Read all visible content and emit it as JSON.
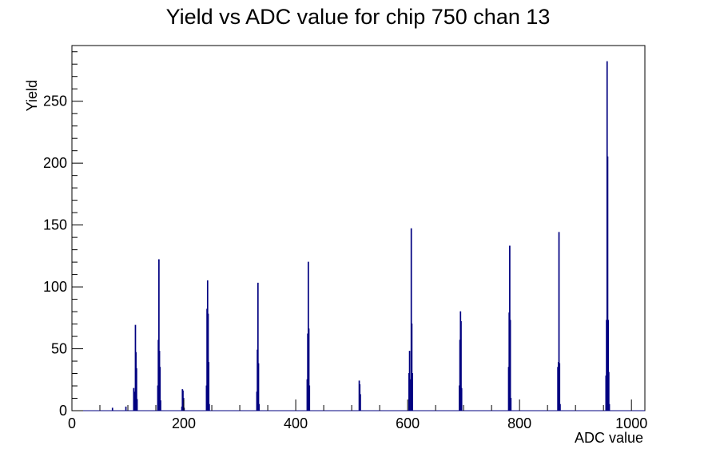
{
  "chart_data": {
    "type": "histogram",
    "title": "Yield vs ADC value for chip 750 chan 13",
    "xlabel": "ADC value",
    "ylabel": "Yield",
    "xlim": [
      0,
      1024
    ],
    "ylim": [
      0,
      295
    ],
    "xticks": [
      0,
      200,
      400,
      600,
      800,
      1000
    ],
    "yticks": [
      0,
      50,
      100,
      150,
      200,
      250
    ],
    "grid": false,
    "legend": "none",
    "line_color": "#000080",
    "bins": [
      {
        "x": 72,
        "y": 2
      },
      {
        "x": 96,
        "y": 3
      },
      {
        "x": 110,
        "y": 18
      },
      {
        "x": 112,
        "y": 15
      },
      {
        "x": 113,
        "y": 69
      },
      {
        "x": 114,
        "y": 47
      },
      {
        "x": 115,
        "y": 34
      },
      {
        "x": 116,
        "y": 9
      },
      {
        "x": 153,
        "y": 20
      },
      {
        "x": 154,
        "y": 57
      },
      {
        "x": 155,
        "y": 122
      },
      {
        "x": 156,
        "y": 48
      },
      {
        "x": 157,
        "y": 35
      },
      {
        "x": 158,
        "y": 8
      },
      {
        "x": 196,
        "y": 3
      },
      {
        "x": 197,
        "y": 17
      },
      {
        "x": 198,
        "y": 16
      },
      {
        "x": 199,
        "y": 10
      },
      {
        "x": 200,
        "y": 2
      },
      {
        "x": 240,
        "y": 20
      },
      {
        "x": 241,
        "y": 82
      },
      {
        "x": 242,
        "y": 105
      },
      {
        "x": 243,
        "y": 78
      },
      {
        "x": 244,
        "y": 39
      },
      {
        "x": 245,
        "y": 5
      },
      {
        "x": 330,
        "y": 15
      },
      {
        "x": 331,
        "y": 49
      },
      {
        "x": 332,
        "y": 103
      },
      {
        "x": 333,
        "y": 38
      },
      {
        "x": 334,
        "y": 5
      },
      {
        "x": 420,
        "y": 25
      },
      {
        "x": 421,
        "y": 62
      },
      {
        "x": 422,
        "y": 120
      },
      {
        "x": 423,
        "y": 66
      },
      {
        "x": 424,
        "y": 20
      },
      {
        "x": 513,
        "y": 24
      },
      {
        "x": 514,
        "y": 21
      },
      {
        "x": 515,
        "y": 13
      },
      {
        "x": 602,
        "y": 30
      },
      {
        "x": 603,
        "y": 48
      },
      {
        "x": 605,
        "y": 25
      },
      {
        "x": 606,
        "y": 147
      },
      {
        "x": 607,
        "y": 70
      },
      {
        "x": 608,
        "y": 30
      },
      {
        "x": 692,
        "y": 20
      },
      {
        "x": 693,
        "y": 57
      },
      {
        "x": 694,
        "y": 80
      },
      {
        "x": 695,
        "y": 72
      },
      {
        "x": 696,
        "y": 18
      },
      {
        "x": 780,
        "y": 35
      },
      {
        "x": 781,
        "y": 79
      },
      {
        "x": 782,
        "y": 133
      },
      {
        "x": 783,
        "y": 73
      },
      {
        "x": 784,
        "y": 10
      },
      {
        "x": 868,
        "y": 35
      },
      {
        "x": 869,
        "y": 39
      },
      {
        "x": 870,
        "y": 144
      },
      {
        "x": 871,
        "y": 38
      },
      {
        "x": 872,
        "y": 5
      },
      {
        "x": 954,
        "y": 28
      },
      {
        "x": 955,
        "y": 73
      },
      {
        "x": 956,
        "y": 282
      },
      {
        "x": 957,
        "y": 205
      },
      {
        "x": 958,
        "y": 73
      },
      {
        "x": 959,
        "y": 31
      },
      {
        "x": 960,
        "y": 5
      }
    ]
  }
}
